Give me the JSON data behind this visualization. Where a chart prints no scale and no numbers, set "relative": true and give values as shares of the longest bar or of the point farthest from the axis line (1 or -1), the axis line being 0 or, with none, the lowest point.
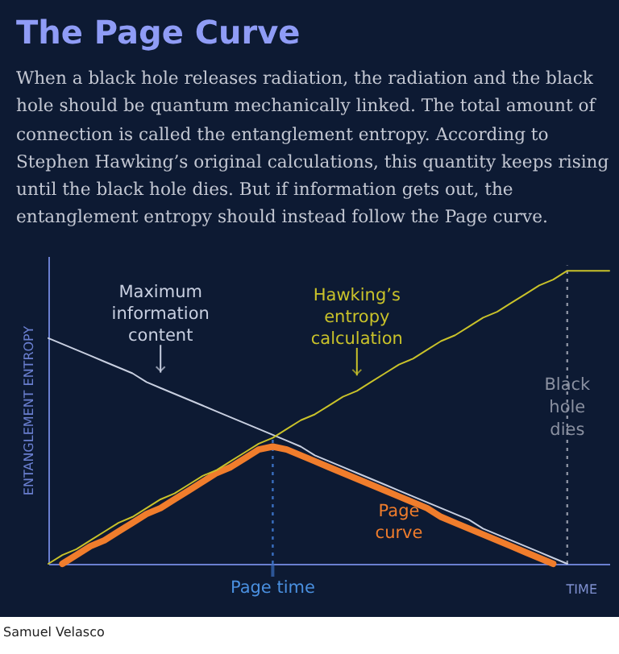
{
  "chart_data": {
    "type": "line",
    "title": "The Page Curve",
    "subtitle": "When a black hole releases radiation, the radiation and the black hole should be quantum mechanically linked. The total amount of connection is called the entanglement entropy. According to Stephen Hawking’s original calculations, this quantity keeps rising until the black hole dies. But if information gets out, the entanglement entropy should instead follow the Page curve.",
    "xlabel": "TIME",
    "ylabel": "ENTANGLEMENT ENTROPY",
    "relative": true,
    "categories": [
      null,
      null,
      null,
      null,
      null,
      null,
      null,
      null,
      null,
      null,
      null,
      null,
      null,
      null,
      null,
      null,
      null,
      null,
      null,
      null,
      null,
      null,
      null,
      null,
      null,
      null,
      null,
      null,
      null,
      null,
      null,
      null,
      null,
      null,
      null,
      null,
      null,
      null,
      null,
      null,
      null
    ],
    "series": [
      {
        "name": "Maximum information content",
        "color": "#c8cfe0",
        "values": [
          0.77,
          0.75,
          0.73,
          0.71,
          0.69,
          0.67,
          0.65,
          0.62,
          0.6,
          0.58,
          0.56,
          0.54,
          0.52,
          0.5,
          0.48,
          0.46,
          0.44,
          0.42,
          0.4,
          0.37,
          0.35,
          0.33,
          0.31,
          0.29,
          0.27,
          0.25,
          0.23,
          0.21,
          0.19,
          0.17,
          0.15,
          0.12,
          0.1,
          0.08,
          0.06,
          0.04,
          0.02,
          0,
          null,
          null,
          null
        ]
      },
      {
        "name": "Hawking’s entropy calculation",
        "color": "#c9c22a",
        "values": [
          0,
          0.03,
          0.05,
          0.08,
          0.11,
          0.14,
          0.16,
          0.19,
          0.22,
          0.24,
          0.27,
          0.3,
          0.32,
          0.35,
          0.38,
          0.41,
          0.43,
          0.46,
          0.49,
          0.51,
          0.54,
          0.57,
          0.59,
          0.62,
          0.65,
          0.68,
          0.7,
          0.73,
          0.76,
          0.78,
          0.81,
          0.84,
          0.86,
          0.89,
          0.92,
          0.95,
          0.97,
          1,
          1,
          1,
          1
        ]
      },
      {
        "name": "Page curve",
        "color": "#f07d2c",
        "values": [
          null,
          0,
          0.03,
          0.06,
          0.08,
          0.11,
          0.14,
          0.17,
          0.19,
          0.22,
          0.25,
          0.28,
          0.31,
          0.33,
          0.36,
          0.39,
          0.4,
          0.39,
          0.37,
          0.35,
          0.33,
          0.31,
          0.29,
          0.27,
          0.25,
          0.23,
          0.21,
          0.19,
          0.16,
          0.14,
          0.12,
          0.1,
          0.08,
          0.06,
          0.04,
          0.02,
          0,
          null,
          null,
          null,
          null
        ]
      }
    ],
    "ref_lines": [
      {
        "axis": "x",
        "label": "Page time",
        "color": "#3a6fc0",
        "line_style": "dotted"
      },
      {
        "axis": "x",
        "label": "Black hole dies",
        "color": "#8a90a0",
        "line_style": "dotted"
      }
    ],
    "annotations": [
      "Samuel Velasco"
    ]
  }
}
